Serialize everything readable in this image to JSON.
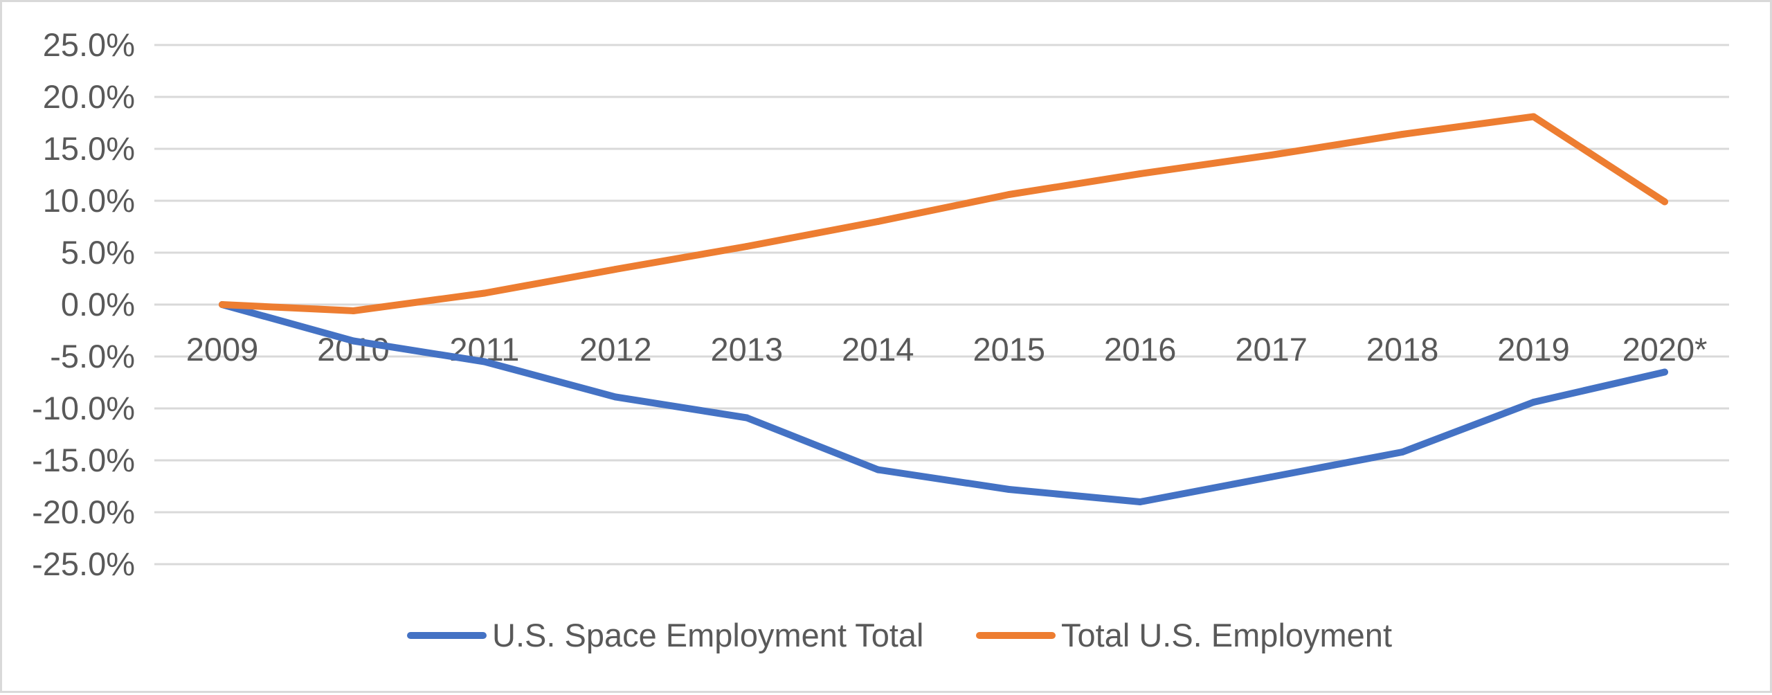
{
  "chart_data": {
    "type": "line",
    "categories": [
      "2009",
      "2010",
      "2011",
      "2012",
      "2013",
      "2014",
      "2015",
      "2016",
      "2017",
      "2018",
      "2019",
      "2020*"
    ],
    "y_tick_labels": [
      "25.0%",
      "20.0%",
      "15.0%",
      "10.0%",
      "5.0%",
      "0.0%",
      "-5.0%",
      "-10.0%",
      "-15.0%",
      "-20.0%",
      "-25.0%"
    ],
    "y_ticks": [
      25,
      20,
      15,
      10,
      5,
      0,
      -5,
      -10,
      -15,
      -20,
      -25
    ],
    "ylim": [
      -25,
      25
    ],
    "grid": true,
    "legend_position": "bottom",
    "series": [
      {
        "name": "U.S. Space Employment Total",
        "color": "#4472C4",
        "values": [
          0.0,
          -3.5,
          -5.5,
          -8.9,
          -10.9,
          -15.9,
          -17.8,
          -19.0,
          -16.6,
          -14.2,
          -9.4,
          -6.5
        ]
      },
      {
        "name": "Total U.S. Employment",
        "color": "#ED7D31",
        "values": [
          0.0,
          -0.6,
          1.1,
          3.4,
          5.6,
          8.0,
          10.6,
          12.6,
          14.4,
          16.4,
          18.1,
          9.9
        ]
      }
    ],
    "gridline_color": "#d9d9d9",
    "text_color": "#595959"
  }
}
